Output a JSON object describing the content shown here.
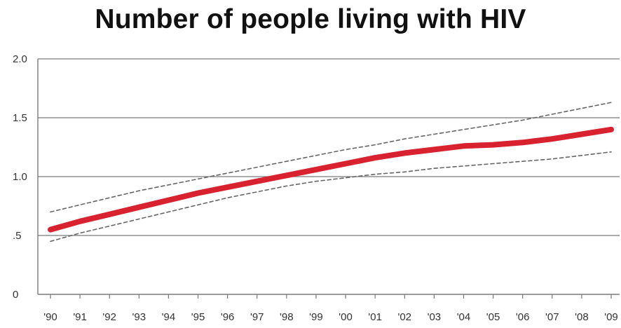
{
  "chart_data": {
    "type": "line",
    "title": "Number of people living with HIV",
    "xlabel": "",
    "ylabel": "",
    "categories": [
      "'90",
      "'91",
      "'92",
      "'93",
      "'94",
      "'95",
      "'96",
      "'97",
      "'98",
      "'99",
      "'00",
      "'01",
      "'02",
      "'03",
      "'04",
      "'05",
      "'06",
      "'07",
      "'08",
      "'09"
    ],
    "y_tick_labels": [
      "0",
      ".5",
      "1.0",
      "1.5",
      "2.0"
    ],
    "ylim": [
      0,
      2.0
    ],
    "grid": "horizontal",
    "colors": {
      "estimate": "#d8222f",
      "bounds": "#666666",
      "grid": "#7a7a7a"
    },
    "series": [
      {
        "role": "estimate",
        "style": "solid",
        "values": [
          0.55,
          0.62,
          0.68,
          0.74,
          0.8,
          0.86,
          0.91,
          0.96,
          1.01,
          1.06,
          1.11,
          1.16,
          1.2,
          1.23,
          1.26,
          1.27,
          1.29,
          1.32,
          1.36,
          1.4
        ]
      },
      {
        "role": "upper-bound",
        "style": "dashed",
        "values": [
          0.7,
          0.76,
          0.82,
          0.88,
          0.93,
          0.98,
          1.03,
          1.08,
          1.13,
          1.18,
          1.23,
          1.27,
          1.32,
          1.36,
          1.4,
          1.44,
          1.48,
          1.53,
          1.58,
          1.63
        ]
      },
      {
        "role": "lower-bound",
        "style": "dashed",
        "values": [
          0.45,
          0.52,
          0.58,
          0.64,
          0.7,
          0.76,
          0.82,
          0.87,
          0.92,
          0.96,
          0.99,
          1.02,
          1.04,
          1.07,
          1.09,
          1.11,
          1.13,
          1.15,
          1.18,
          1.21
        ]
      }
    ]
  }
}
